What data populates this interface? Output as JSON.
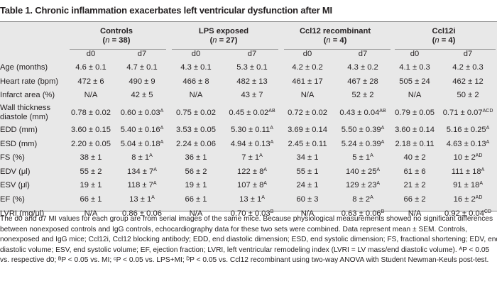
{
  "title": "Table 1. Chronic inflammation exacerbates left ventricular dysfunction after MI",
  "groups": [
    {
      "name": "Controls",
      "n_label": "n",
      "n_value": "= 38)"
    },
    {
      "name": "LPS exposed",
      "n_label": "n",
      "n_value": "= 27)"
    },
    {
      "name": "Ccl12 recombinant",
      "n_label": "n",
      "n_value": "= 4)"
    },
    {
      "name": "Ccl12i",
      "n_label": "n",
      "n_value": "= 4)"
    }
  ],
  "timepoints": [
    "d0",
    "d7",
    "d0",
    "d7",
    "d0",
    "d7",
    "d0",
    "d7"
  ],
  "rows": [
    {
      "label": "Age (months)",
      "cells": [
        [
          "4.6 ± 0.1",
          ""
        ],
        [
          "4.7 ± 0.1",
          ""
        ],
        [
          "4.3 ± 0.1",
          ""
        ],
        [
          "5.3 ± 0.1",
          ""
        ],
        [
          "4.2 ± 0.2",
          ""
        ],
        [
          "4.3 ± 0.2",
          ""
        ],
        [
          "4.1 ± 0.3",
          ""
        ],
        [
          "4.2 ± 0.3",
          ""
        ]
      ]
    },
    {
      "label": "Heart rate (bpm)",
      "cells": [
        [
          "472 ± 6",
          ""
        ],
        [
          "490 ± 9",
          ""
        ],
        [
          "466 ± 8",
          ""
        ],
        [
          "482 ± 13",
          ""
        ],
        [
          "461 ± 17",
          ""
        ],
        [
          "467 ± 28",
          ""
        ],
        [
          "505 ± 24",
          ""
        ],
        [
          "462 ± 12",
          ""
        ]
      ]
    },
    {
      "label": "Infarct area (%)",
      "cells": [
        [
          "N/A",
          ""
        ],
        [
          "42 ± 5",
          ""
        ],
        [
          "N/A",
          ""
        ],
        [
          "43 ± 7",
          ""
        ],
        [
          "N/A",
          ""
        ],
        [
          "52 ± 2",
          ""
        ],
        [
          "N/A",
          ""
        ],
        [
          "50 ± 2",
          ""
        ]
      ]
    },
    {
      "label": "Wall thickness diastole (mm)",
      "cells": [
        [
          "0.78 ± 0.02",
          ""
        ],
        [
          "0.60 ± 0.03",
          "A"
        ],
        [
          "0.75 ± 0.02",
          ""
        ],
        [
          "0.45 ± 0.02",
          "AB"
        ],
        [
          "0.72 ± 0.02",
          ""
        ],
        [
          "0.43 ± 0.04",
          "AB"
        ],
        [
          "0.79 ± 0.05",
          ""
        ],
        [
          "0.71 ± 0.07",
          "ACD"
        ]
      ]
    },
    {
      "label": "EDD (mm)",
      "cells": [
        [
          "3.60 ± 0.15",
          ""
        ],
        [
          "5.40 ± 0.16",
          "A"
        ],
        [
          "3.53 ± 0.05",
          ""
        ],
        [
          "5.30 ± 0.11",
          "A"
        ],
        [
          "3.69 ± 0.14",
          ""
        ],
        [
          "5.50 ± 0.39",
          "A"
        ],
        [
          "3.60 ± 0.14",
          ""
        ],
        [
          "5.16 ± 0.25",
          "A"
        ]
      ]
    },
    {
      "label": "ESD (mm)",
      "cells": [
        [
          "2.20 ± 0.05",
          ""
        ],
        [
          "5.04 ± 0.18",
          "A"
        ],
        [
          "2.24 ± 0.06",
          ""
        ],
        [
          "4.94 ± 0.13",
          "A"
        ],
        [
          "2.45 ± 0.11",
          ""
        ],
        [
          "5.24 ± 0.39",
          "A"
        ],
        [
          "2.18 ± 0.11",
          ""
        ],
        [
          "4.63 ± 0.13",
          "A"
        ]
      ]
    },
    {
      "label": "FS (%)",
      "cells": [
        [
          "38 ± 1",
          ""
        ],
        [
          "8 ± 1",
          "A"
        ],
        [
          "36 ± 1",
          ""
        ],
        [
          "7 ± 1",
          "A"
        ],
        [
          "34 ± 1",
          ""
        ],
        [
          "5 ± 1",
          "A"
        ],
        [
          "40 ± 2",
          ""
        ],
        [
          "10 ± 2",
          "AD"
        ]
      ]
    },
    {
      "label": "EDV (μl)",
      "cells": [
        [
          "55 ± 2",
          ""
        ],
        [
          "134 ± 7",
          "A"
        ],
        [
          "56 ± 2",
          ""
        ],
        [
          "122 ± 8",
          "A"
        ],
        [
          "55 ± 1",
          ""
        ],
        [
          "140 ± 25",
          "A"
        ],
        [
          "61 ± 6",
          ""
        ],
        [
          "111 ± 18",
          "A"
        ]
      ]
    },
    {
      "label": "ESV (μl)",
      "cells": [
        [
          "19 ± 1",
          ""
        ],
        [
          "118 ± 7",
          "A"
        ],
        [
          "19 ± 1",
          ""
        ],
        [
          "107 ± 8",
          "A"
        ],
        [
          "24 ± 1",
          ""
        ],
        [
          "129 ± 23",
          "A"
        ],
        [
          "21 ± 2",
          ""
        ],
        [
          "91 ± 18",
          "A"
        ]
      ]
    },
    {
      "label": "EF (%)",
      "cells": [
        [
          "66 ± 1",
          ""
        ],
        [
          "13 ± 1",
          "A"
        ],
        [
          "66 ± 1",
          ""
        ],
        [
          "13 ± 1",
          "A"
        ],
        [
          "60 ± 3",
          ""
        ],
        [
          "8 ± 2",
          "A"
        ],
        [
          "66 ± 2",
          ""
        ],
        [
          "16 ± 2",
          "AD"
        ]
      ]
    },
    {
      "label": "LVRI (mg/μl)",
      "cells": [
        [
          "N/A",
          ""
        ],
        [
          "0.86 ± 0.06",
          ""
        ],
        [
          "N/A",
          ""
        ],
        [
          "0.70 ± 0.03",
          "B"
        ],
        [
          "N/A",
          ""
        ],
        [
          "0.63 ± 0.06",
          "B"
        ],
        [
          "N/A",
          ""
        ],
        [
          "0.92 ± 0.04",
          "CD"
        ]
      ]
    }
  ],
  "notes": [
    "The d0 and d7 MI values for each group are from serial images of the same mice. Because physiological measurements showed no significant differences",
    "between nonexposed controls and IgG controls, echocardiography data for these two sets were combined. Data represent mean ± SEM. Controls,",
    "nonexposed and IgG mice; Ccl12i, Ccl12 blocking antibody; EDD, end diastolic dimension; ESD, end systolic dimension; FS, fractional shortening; EDV, end",
    "diastolic volume; ESV, end systolic volume; EF, ejection fraction; LVRI, left ventricular remodeling index (LVRI = LV mass/end diastolic volume). ᴬP < 0.05",
    "vs. respective d0; ᴮP < 0.05 vs. MI; ᶜP < 0.05 vs. LPS+MI; ᴰP < 0.05 vs. Ccl12 recombinant using two-way ANOVA with Student Newman-Keuls post-test."
  ]
}
